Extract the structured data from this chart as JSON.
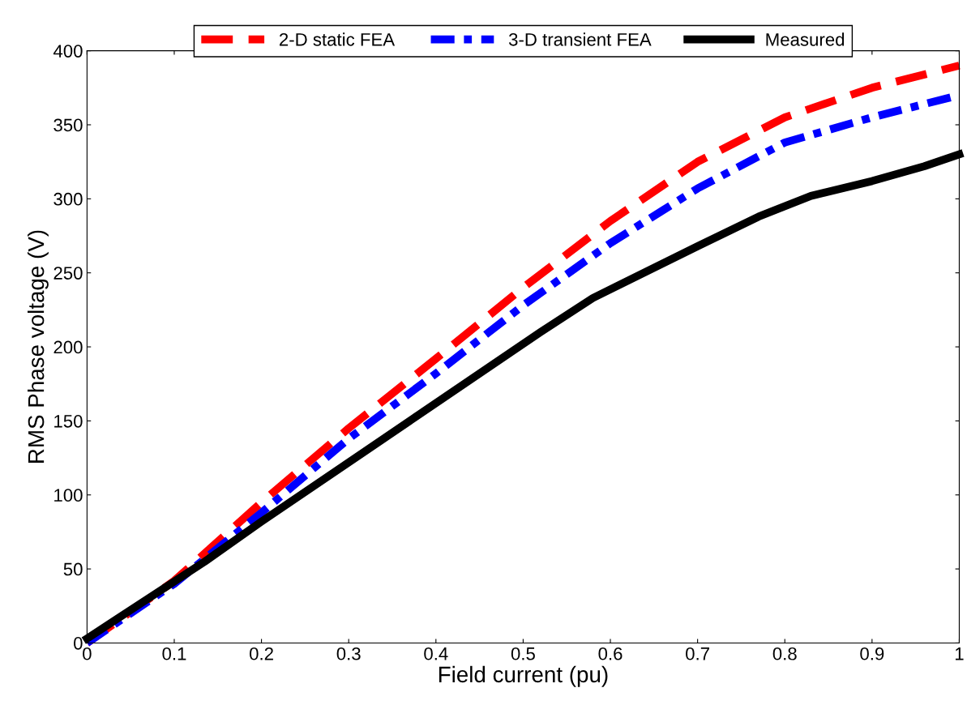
{
  "chart_data": {
    "type": "line",
    "xlabel": "Field current (pu)",
    "ylabel": "RMS Phase voltage (V)",
    "xlim": [
      0,
      1
    ],
    "ylim": [
      0,
      400
    ],
    "xticks": [
      0,
      0.1,
      0.2,
      0.3,
      0.4,
      0.5,
      0.6,
      0.7,
      0.8,
      0.9,
      1
    ],
    "yticks": [
      0,
      50,
      100,
      150,
      200,
      250,
      300,
      350,
      400
    ],
    "grid": false,
    "legend": "top",
    "marker": "none",
    "series": [
      {
        "name": "2-D static FEA",
        "color": "#ff0000",
        "line_style": "dashed",
        "x": [
          0,
          0.1,
          0.2,
          0.3,
          0.4,
          0.5,
          0.6,
          0.7,
          0.8,
          0.9,
          1.0
        ],
        "values": [
          0,
          42,
          95,
          145,
          192,
          240,
          285,
          325,
          355,
          375,
          390
        ]
      },
      {
        "name": "3-D transient FEA",
        "color": "#0000ff",
        "line_style": "dashdot",
        "x": [
          0,
          0.1,
          0.2,
          0.3,
          0.4,
          0.5,
          0.6,
          0.7,
          0.8,
          0.9,
          1.0
        ],
        "values": [
          0,
          40,
          88,
          138,
          182,
          228,
          270,
          307,
          338,
          355,
          370
        ]
      },
      {
        "name": "Measured",
        "color": "#000000",
        "line_style": "solid",
        "x": [
          0,
          0.135,
          0.2,
          0.32,
          0.39,
          0.52,
          0.58,
          0.7,
          0.77,
          0.83,
          0.9,
          0.96,
          1.0
        ],
        "values": [
          3,
          55,
          82,
          130,
          158,
          210,
          233,
          268,
          288,
          302,
          312,
          322,
          330
        ]
      }
    ]
  }
}
